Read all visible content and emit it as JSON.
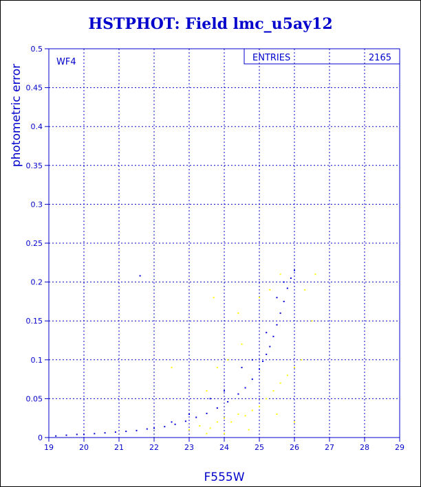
{
  "colors": {
    "axis": "#0000cc",
    "series_primary": "#0000dd",
    "series_secondary": "#ffff00",
    "title": "#0000cc"
  },
  "chart_data": {
    "type": "scatter",
    "title": "HSTPHOT: Field lmc_u5ay12",
    "xlabel": "F555W",
    "ylabel": "photometric error",
    "panel_label": "WF4",
    "stats_box": {
      "label": "ENTRIES",
      "value": "2165"
    },
    "xlim": [
      19,
      29
    ],
    "ylim": [
      0,
      0.5
    ],
    "x_ticks": [
      "19",
      "20",
      "21",
      "22",
      "23",
      "24",
      "25",
      "26",
      "27",
      "28",
      "29"
    ],
    "y_ticks": [
      "0",
      "0.05",
      "0.1",
      "0.15",
      "0.2",
      "0.25",
      "0.3",
      "0.35",
      "0.4",
      "0.45",
      "0.5"
    ],
    "grid": true,
    "series": [
      {
        "color": "blue",
        "points": [
          [
            19.2,
            0.002
          ],
          [
            19.5,
            0.003
          ],
          [
            19.8,
            0.004
          ],
          [
            20.0,
            0.004
          ],
          [
            20.3,
            0.005
          ],
          [
            20.6,
            0.006
          ],
          [
            20.9,
            0.007
          ],
          [
            21.2,
            0.008
          ],
          [
            21.5,
            0.009
          ],
          [
            21.8,
            0.011
          ],
          [
            22.0,
            0.012
          ],
          [
            22.3,
            0.014
          ],
          [
            22.6,
            0.017
          ],
          [
            22.9,
            0.021
          ],
          [
            23.2,
            0.026
          ],
          [
            23.5,
            0.031
          ],
          [
            23.8,
            0.038
          ],
          [
            24.1,
            0.046
          ],
          [
            24.4,
            0.056
          ],
          [
            24.6,
            0.064
          ],
          [
            24.8,
            0.075
          ],
          [
            25.0,
            0.088
          ],
          [
            25.1,
            0.098
          ],
          [
            25.2,
            0.107
          ],
          [
            25.3,
            0.117
          ],
          [
            25.4,
            0.13
          ],
          [
            25.5,
            0.145
          ],
          [
            25.6,
            0.16
          ],
          [
            25.7,
            0.175
          ],
          [
            25.8,
            0.192
          ],
          [
            25.9,
            0.205
          ],
          [
            26.0,
            0.215
          ],
          [
            21.6,
            0.208
          ],
          [
            23.6,
            0.05
          ],
          [
            24.0,
            0.06
          ],
          [
            24.5,
            0.09
          ],
          [
            25.2,
            0.135
          ],
          [
            25.5,
            0.18
          ],
          [
            25.7,
            0.2
          ],
          [
            24.8,
            0.1
          ],
          [
            23.0,
            0.03
          ],
          [
            22.5,
            0.02
          ]
        ]
      },
      {
        "color": "yellow",
        "points": [
          [
            23.0,
            0.01
          ],
          [
            23.3,
            0.015
          ],
          [
            23.6,
            0.012
          ],
          [
            23.8,
            0.02
          ],
          [
            24.0,
            0.025
          ],
          [
            24.2,
            0.02
          ],
          [
            24.4,
            0.03
          ],
          [
            24.6,
            0.028
          ],
          [
            24.8,
            0.035
          ],
          [
            25.0,
            0.04
          ],
          [
            25.2,
            0.05
          ],
          [
            25.4,
            0.06
          ],
          [
            25.6,
            0.07
          ],
          [
            25.8,
            0.08
          ],
          [
            26.0,
            0.09
          ],
          [
            26.2,
            0.1
          ],
          [
            23.5,
            0.06
          ],
          [
            23.8,
            0.09
          ],
          [
            24.1,
            0.1
          ],
          [
            24.5,
            0.12
          ],
          [
            25.0,
            0.18
          ],
          [
            25.3,
            0.19
          ],
          [
            25.6,
            0.21
          ],
          [
            26.3,
            0.19
          ],
          [
            26.5,
            0.15
          ],
          [
            26.6,
            0.21
          ],
          [
            23.7,
            0.18
          ],
          [
            24.4,
            0.16
          ],
          [
            22.5,
            0.09
          ],
          [
            24.7,
            0.01
          ],
          [
            25.5,
            0.03
          ],
          [
            26.0,
            0.02
          ],
          [
            24.0,
            0.005
          ],
          [
            23.5,
            0.005
          ]
        ]
      }
    ]
  }
}
